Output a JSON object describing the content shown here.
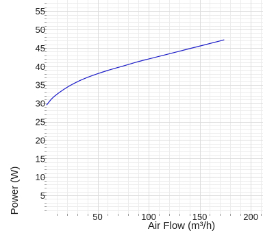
{
  "chart_data": {
    "type": "line",
    "title": "",
    "xlabel": "Air Flow (m³/h)",
    "ylabel": "Power (W)",
    "xlim": [
      0,
      212
    ],
    "ylim": [
      0,
      58
    ],
    "x_ticks": [
      50,
      100,
      150,
      200
    ],
    "y_ticks": [
      5,
      10,
      15,
      20,
      25,
      30,
      35,
      40,
      45,
      50,
      55
    ],
    "x_ticks_minor_step": 10,
    "y_ticks_minor_step": 1,
    "grid": true,
    "series_color": "#1c1cc8",
    "series": [
      {
        "x": [
          0,
          5,
          10,
          20,
          30,
          40,
          50,
          60,
          70,
          80,
          90,
          100,
          110,
          120,
          130,
          140,
          150,
          160,
          170,
          174
        ],
        "y": [
          29.5,
          31.2,
          32.4,
          34.3,
          35.8,
          37.0,
          38.0,
          38.9,
          39.7,
          40.5,
          41.3,
          42.0,
          42.7,
          43.4,
          44.1,
          44.8,
          45.5,
          46.2,
          46.9,
          47.2
        ]
      }
    ]
  }
}
